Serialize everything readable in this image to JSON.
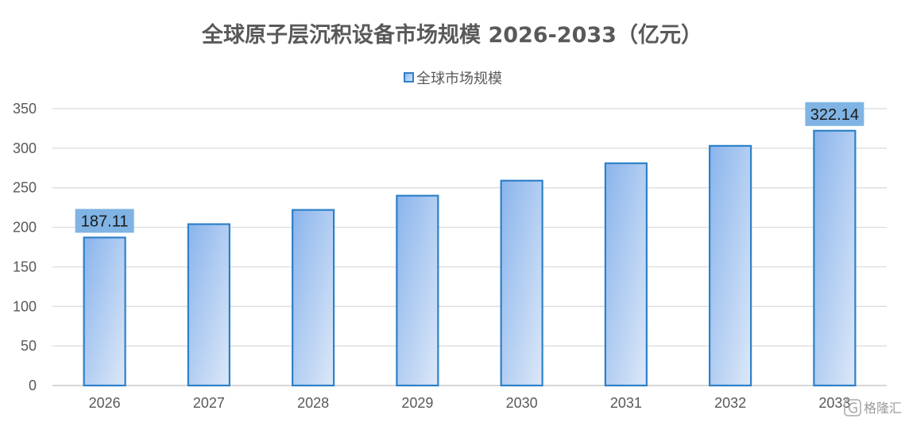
{
  "chart_data": {
    "type": "bar",
    "title": "全球原子层沉积设备市场规模 2026-2033（亿元）",
    "categories": [
      "2026",
      "2027",
      "2028",
      "2029",
      "2030",
      "2031",
      "2032",
      "2033"
    ],
    "series": [
      {
        "name": "全球市场规模",
        "values": [
          187.11,
          204,
          222,
          240,
          259,
          281,
          303,
          322.14
        ]
      }
    ],
    "data_labels": [
      {
        "category": "2026",
        "text": "187.11"
      },
      {
        "category": "2033",
        "text": "322.14"
      }
    ],
    "ylim": [
      0,
      350
    ],
    "yticks": [
      "0",
      "50",
      "100",
      "150",
      "200",
      "250",
      "300",
      "350"
    ],
    "grid": true,
    "legend_position": "top",
    "colors": {
      "bar_fill_start": "#8ab4ec",
      "bar_fill_end": "#dce8f8",
      "bar_border": "#2e80c8",
      "label_background": "#7fb4e4",
      "gridline": "#d9d9d9",
      "axis_line": "#bfbfbf",
      "text": "#595959"
    }
  },
  "watermark": {
    "text": "格隆汇",
    "icon": "gelonghui-logo-icon"
  }
}
